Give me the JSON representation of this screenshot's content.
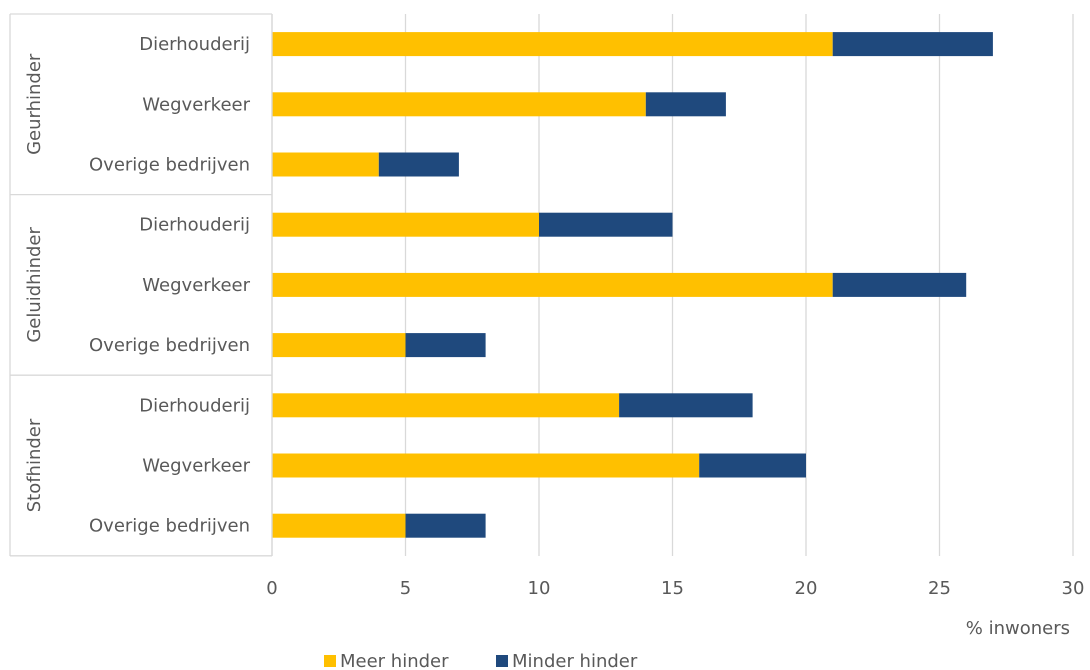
{
  "chart_data": {
    "type": "bar",
    "orientation": "horizontal",
    "stacked": true,
    "groups": [
      {
        "name": "Geurhinder",
        "categories": [
          "Dierhouderij",
          "Wegverkeer",
          "Overige bedrijven"
        ]
      },
      {
        "name": "Geluidhinder",
        "categories": [
          "Dierhouderij",
          "Wegverkeer",
          "Overige bedrijven"
        ]
      },
      {
        "name": "Stofhinder",
        "categories": [
          "Dierhouderij",
          "Wegverkeer",
          "Overige bedrijven"
        ]
      }
    ],
    "series": [
      {
        "name": "Meer hinder",
        "color": "#FFC000",
        "values": [
          21,
          14,
          4,
          10,
          21,
          5,
          13,
          16,
          5
        ]
      },
      {
        "name": "Minder hinder",
        "color": "#1F497D",
        "values": [
          6,
          3,
          3,
          5,
          5,
          3,
          5,
          4,
          3
        ]
      }
    ],
    "xlabel": "% inwoners",
    "xlim": [
      0,
      30
    ],
    "xticks": [
      0,
      5,
      10,
      15,
      20,
      25,
      30
    ],
    "grid": true,
    "legend_position": "bottom"
  }
}
